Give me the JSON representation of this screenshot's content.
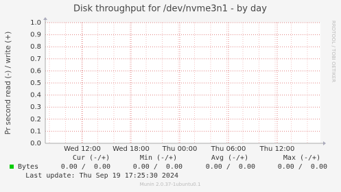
{
  "chart_data": {
    "type": "line",
    "title": "Disk throughput for /dev/nvme3n1 - by day",
    "ylabel": "Pr second read (-) / write (+)",
    "watermark": "RRDTOOL / TOBI OETIKER",
    "ylim": [
      0,
      1
    ],
    "yticks": [
      {
        "value": 0,
        "label": "0.0"
      },
      0.1,
      0.2,
      0.3,
      0.4,
      0.5,
      0.6,
      0.7,
      0.8,
      0.9,
      {
        "value": 1,
        "label": "1.0"
      }
    ],
    "xticks": [
      "Wed 12:00",
      "Wed 18:00",
      "Thu 00:00",
      "Thu 06:00",
      "Thu 12:00"
    ],
    "grid": true,
    "series": [
      {
        "name": "Bytes",
        "color": "#00cc00"
      }
    ],
    "legend_table": {
      "headers": [
        "Cur (-/+)",
        "Min (-/+)",
        "Avg (-/+)",
        "Max (-/+)"
      ],
      "rows": [
        [
          "0.00 /  0.00",
          "0.00 /  0.00",
          "0.00 /  0.00",
          "0.00 /  0.00"
        ]
      ]
    },
    "last_update": "Last update: Thu Sep 19 17:25:30 2024",
    "footer": "Munin 2.0.37-1ubuntu0.1"
  }
}
